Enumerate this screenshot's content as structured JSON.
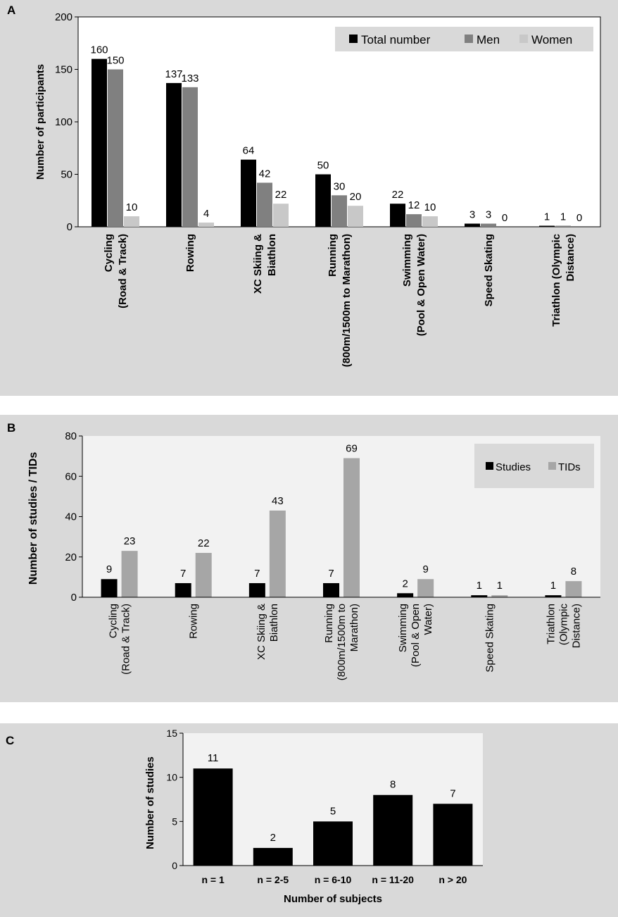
{
  "colors": {
    "panel_bg": "#d9d9d9",
    "plot_bg_a": "#ffffff",
    "plot_bg_b": "#f2f2f2",
    "plot_bg_c": "#f2f2f2",
    "legend_bg": "#d9d9d9",
    "axis": "#000000"
  },
  "chart_data": [
    {
      "panel": "A",
      "type": "bar",
      "ylabel": "Number of participants",
      "ylim": [
        0,
        200
      ],
      "yticks": [
        0,
        50,
        100,
        150,
        200
      ],
      "legend_position": "top-right",
      "categories": [
        [
          "Cycling",
          "(Road & Track)"
        ],
        [
          "Rowing"
        ],
        [
          "XC Skiing &",
          "Biathlon"
        ],
        [
          "Running",
          "(800m/1500m to Marathon)"
        ],
        [
          "Swimming",
          "(Pool & Open Water)"
        ],
        [
          "Speed Skating"
        ],
        [
          "Triathlon (Olympic",
          "Distance)"
        ]
      ],
      "series": [
        {
          "name": "Total number",
          "color": "#000000",
          "values": [
            160,
            137,
            64,
            50,
            22,
            3,
            1
          ]
        },
        {
          "name": "Men",
          "color": "#808080",
          "values": [
            150,
            133,
            42,
            30,
            12,
            3,
            1
          ]
        },
        {
          "name": "Women",
          "color": "#c8c8c8",
          "values": [
            10,
            4,
            22,
            20,
            10,
            0,
            0
          ]
        }
      ]
    },
    {
      "panel": "B",
      "type": "bar",
      "ylabel": "Number of studies / TIDs",
      "ylim": [
        0,
        80
      ],
      "yticks": [
        0,
        20,
        40,
        60,
        80
      ],
      "legend_position": "top-right",
      "categories": [
        [
          "Cycling",
          "(Road & Track)"
        ],
        [
          "Rowing"
        ],
        [
          "XC Skiing &",
          "Biathlon"
        ],
        [
          "Running",
          "(800m/1500m to",
          "Marathon)"
        ],
        [
          "Swimming",
          "(Pool & Open",
          "Water)"
        ],
        [
          "Speed Skating"
        ],
        [
          "Triathlon",
          "(Olympic",
          "Distance)"
        ]
      ],
      "series": [
        {
          "name": "Studies",
          "color": "#000000",
          "values": [
            9,
            7,
            7,
            7,
            2,
            1,
            1
          ]
        },
        {
          "name": "TIDs",
          "color": "#a6a6a6",
          "values": [
            23,
            22,
            43,
            69,
            9,
            1,
            8
          ]
        }
      ]
    },
    {
      "panel": "C",
      "type": "bar",
      "ylabel": "Number of studies",
      "xlabel": "Number of subjects",
      "ylim": [
        0,
        15
      ],
      "yticks": [
        0,
        5,
        10,
        15
      ],
      "categories": [
        [
          "n = 1"
        ],
        [
          "n = 2-5"
        ],
        [
          "n = 6-10"
        ],
        [
          "n = 11-20"
        ],
        [
          "n > 20"
        ]
      ],
      "series": [
        {
          "name": "Studies",
          "color": "#000000",
          "values": [
            11,
            2,
            5,
            8,
            7
          ]
        }
      ]
    }
  ]
}
